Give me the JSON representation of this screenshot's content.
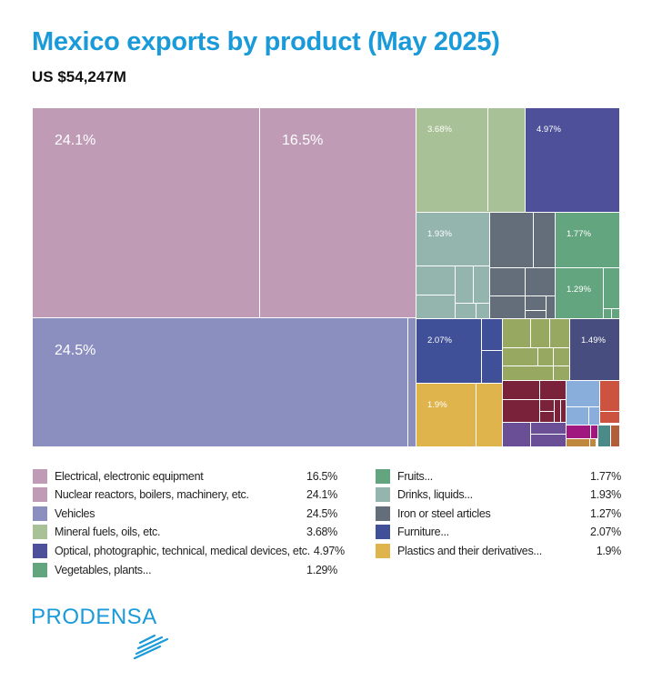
{
  "title": "Mexico exports by product (May 2025)",
  "subtitle": "US $54,247M",
  "chart_data": {
    "type": "treemap",
    "title": "Mexico exports by product (May 2025)",
    "subtitle": "US $54,247M",
    "items": [
      {
        "name": "Electrical, electronic equipment",
        "value": 16.5,
        "label": "16.5%",
        "color": "#bf9bb5"
      },
      {
        "name": "Nuclear reactors, boilers, machinery, etc.",
        "value": 24.1,
        "label": "24.1%",
        "color": "#bf9bb5"
      },
      {
        "name": "Vehicles",
        "value": 24.5,
        "label": "24.5%",
        "color": "#8a8fc0"
      },
      {
        "name": "Mineral fuels, oils, etc.",
        "value": 3.68,
        "label": "3.68%",
        "color": "#a9c196"
      },
      {
        "name": "Optical, photographic, technical, medical devices, etc.",
        "value": 4.97,
        "label": "4.97%",
        "color": "#4e519a"
      },
      {
        "name": "Vegetables, plants...",
        "value": 1.29,
        "label": "1.29%",
        "color": "#63a57e"
      },
      {
        "name": "Fruits...",
        "value": 1.77,
        "label": "1.77%",
        "color": "#63a57e"
      },
      {
        "name": "Drinks, liquids...",
        "value": 1.93,
        "label": "1.93%",
        "color": "#93b5ad"
      },
      {
        "name": "Iron or steel articles",
        "value": 1.27,
        "label": "1.27%",
        "color": "#636e7a"
      },
      {
        "name": "Furniture...",
        "value": 2.07,
        "label": "2.07%",
        "color": "#3f4f98"
      },
      {
        "name": "Plastics and their derivatives...",
        "value": 1.9,
        "label": "1.9%",
        "color": "#e0b44d"
      },
      {
        "name": "",
        "value": 1.49,
        "label": "1.49%",
        "color": "#474d7e"
      }
    ],
    "legend_placement": "bottom",
    "other_colors": [
      "#97a860",
      "#7a2239",
      "#6a4f96",
      "#8aaedb",
      "#cc5340",
      "#a0177f",
      "#c0883e",
      "#4a8b8a",
      "#b35e3a"
    ]
  },
  "logo": {
    "text": "PRODENSA",
    "color": "#1a9ad8"
  }
}
